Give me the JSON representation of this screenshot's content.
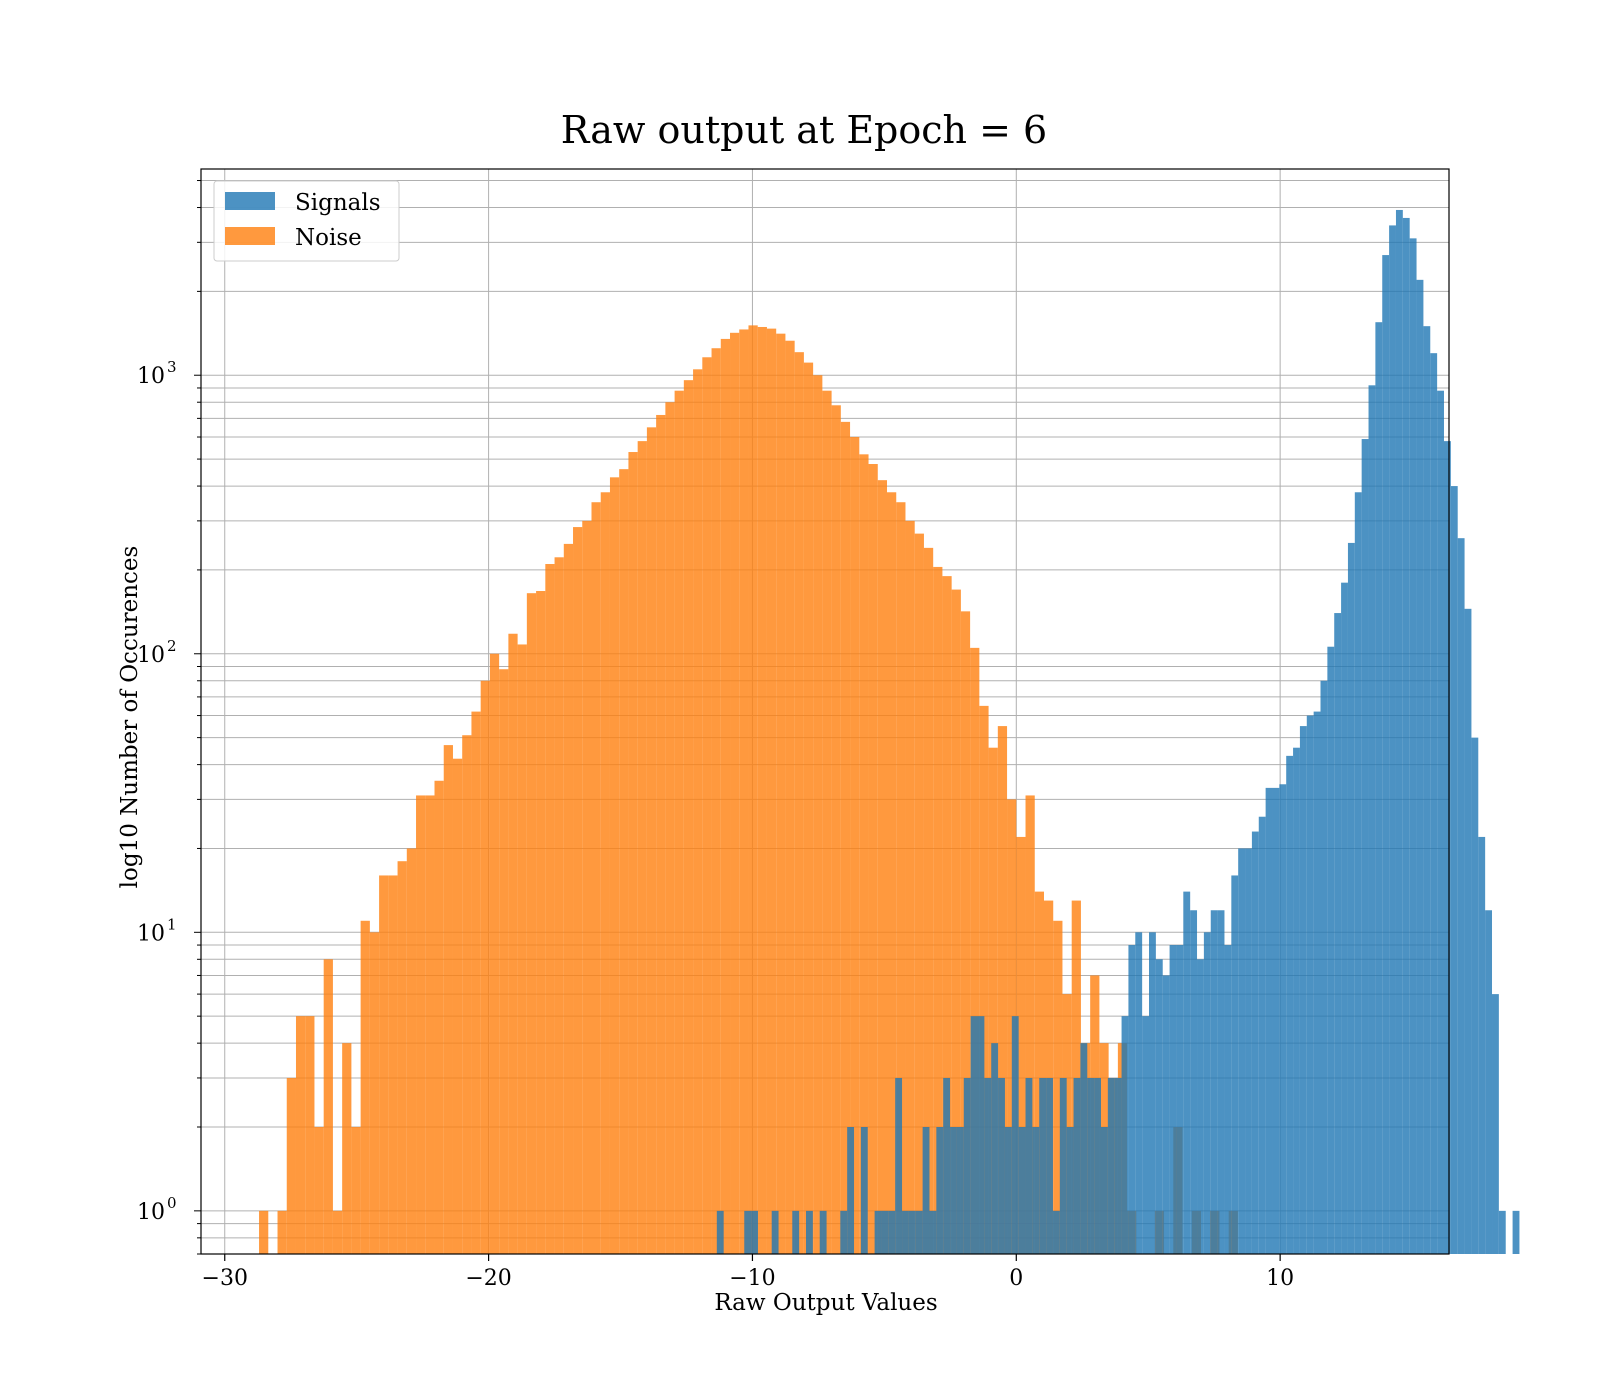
{
  "chart_data": {
    "type": "bar",
    "title": "Raw output at Epoch = 6",
    "xlabel": "Raw Output Values",
    "ylabel": "log10 Number of Occurences",
    "yscale": "log",
    "xlim": [
      -30.9,
      16.4
    ],
    "ylim": [
      0.7,
      5500
    ],
    "grid": true,
    "legend_position": "top-left",
    "colors": {
      "Signals": "#1f77b4",
      "Noise": "#ff7f0e",
      "opacity": 0.8
    },
    "xticks": [
      {
        "value": -30,
        "label": "−30"
      },
      {
        "value": -20,
        "label": "−20"
      },
      {
        "value": -10,
        "label": "−10"
      },
      {
        "value": 0,
        "label": "0"
      },
      {
        "value": 10,
        "label": "10"
      }
    ],
    "yticks": [
      {
        "value": 1,
        "base": "10",
        "exp": "0"
      },
      {
        "value": 10,
        "base": "10",
        "exp": "1"
      },
      {
        "value": 100,
        "base": "10",
        "exp": "2"
      },
      {
        "value": 1000,
        "base": "10",
        "exp": "3"
      }
    ],
    "series": [
      {
        "name": "Noise",
        "bin_start": -28.7,
        "bin_width": 0.35,
        "counts": [
          1,
          0,
          1,
          3,
          5,
          5,
          2,
          8,
          1,
          4,
          2,
          11,
          10,
          16,
          16,
          18,
          20,
          31,
          31,
          35,
          47,
          42,
          51,
          62,
          80,
          100,
          88,
          118,
          108,
          165,
          168,
          210,
          222,
          248,
          285,
          300,
          350,
          380,
          430,
          460,
          530,
          580,
          650,
          720,
          800,
          880,
          960,
          1050,
          1160,
          1250,
          1350,
          1420,
          1460,
          1510,
          1490,
          1470,
          1410,
          1330,
          1210,
          1110,
          1000,
          880,
          780,
          680,
          600,
          520,
          480,
          420,
          380,
          350,
          300,
          270,
          240,
          205,
          190,
          170,
          142,
          105,
          65,
          46,
          55,
          30,
          22,
          31,
          14,
          13,
          11,
          6,
          13,
          4,
          7,
          4,
          3,
          4,
          1,
          0,
          0,
          1,
          0,
          2,
          0,
          1,
          0,
          1,
          0,
          1
        ]
      },
      {
        "name": "Signals",
        "bin_start": -11.35,
        "bin_width": 0.26,
        "counts": [
          1,
          0,
          0,
          0,
          1,
          1,
          0,
          0,
          1,
          0,
          0,
          1,
          0,
          1,
          0,
          1,
          0,
          0,
          1,
          2,
          0,
          2,
          0,
          1,
          1,
          1,
          3,
          1,
          1,
          1,
          2,
          1,
          2,
          3,
          2,
          2,
          3,
          5,
          5,
          3,
          4,
          3,
          2,
          5,
          2,
          3,
          2,
          3,
          3,
          1,
          3,
          2,
          3,
          4,
          3,
          3,
          2,
          3,
          3,
          5,
          9,
          10,
          5,
          10,
          8,
          7,
          9,
          9,
          14,
          12,
          8,
          10,
          12,
          12,
          9,
          16,
          20,
          20,
          23,
          26,
          33,
          33,
          34,
          43,
          46,
          55,
          60,
          62,
          80,
          106,
          140,
          180,
          250,
          380,
          590,
          920,
          1550,
          2700,
          3450,
          3920,
          3670,
          3100,
          2200,
          1500,
          1200,
          880,
          580,
          400,
          260,
          145,
          50,
          22,
          12,
          6,
          1,
          0,
          1
        ]
      }
    ]
  }
}
